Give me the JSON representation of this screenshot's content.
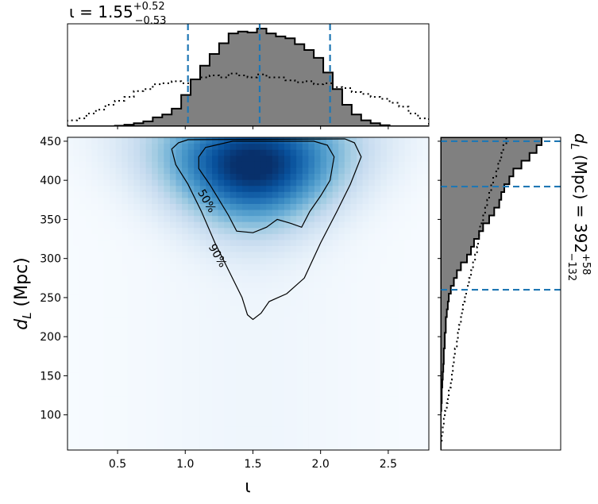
{
  "chart_data": {
    "type": "heatmap",
    "title_top": {
      "base": "ι = 1.55",
      "sup": "+0.52",
      "sub": "−0.53"
    },
    "title_right": {
      "base": "d",
      "base_sub": "L",
      "rest": " (Mpc) = 392",
      "sup": "+58",
      "sub": "−132"
    },
    "xlabel": "ι",
    "ylabel_base": "d",
    "ylabel_sub": "L",
    "ylabel_rest": " (Mpc)",
    "xlim": [
      0.13,
      2.8
    ],
    "ylim": [
      55,
      455
    ],
    "xticks": [
      0.5,
      1.0,
      1.5,
      2.0,
      2.5
    ],
    "xtick_labels": [
      "0.5",
      "1.0",
      "1.5",
      "2.0",
      "2.5"
    ],
    "yticks": [
      100,
      150,
      200,
      250,
      300,
      350,
      400,
      450
    ],
    "ytick_labels": [
      "100",
      "150",
      "200",
      "250",
      "300",
      "350",
      "400",
      "450"
    ],
    "x_quantiles": [
      1.02,
      1.55,
      2.07
    ],
    "y_quantiles": [
      260,
      392,
      450
    ],
    "contour_levels": [
      "50%",
      "90%"
    ],
    "colormap": "Blues",
    "colors": {
      "hist_fill": "#808080",
      "hist_edge": "#000000",
      "quantile_line": "#1f77b4",
      "contour": "#000000"
    },
    "density_peak": {
      "x": 1.5,
      "y": 420
    },
    "contour_90": [
      [
        1.02,
        452
      ],
      [
        0.95,
        448
      ],
      [
        0.9,
        440
      ],
      [
        0.93,
        420
      ],
      [
        1.02,
        395
      ],
      [
        1.12,
        360
      ],
      [
        1.22,
        320
      ],
      [
        1.32,
        285
      ],
      [
        1.42,
        250
      ],
      [
        1.46,
        228
      ],
      [
        1.5,
        222
      ],
      [
        1.56,
        230
      ],
      [
        1.62,
        245
      ],
      [
        1.75,
        255
      ],
      [
        1.88,
        275
      ],
      [
        2.0,
        320
      ],
      [
        2.12,
        360
      ],
      [
        2.22,
        395
      ],
      [
        2.3,
        430
      ],
      [
        2.25,
        448
      ],
      [
        2.18,
        453
      ]
    ],
    "contour_50": [
      [
        1.15,
        442
      ],
      [
        1.1,
        430
      ],
      [
        1.1,
        415
      ],
      [
        1.18,
        395
      ],
      [
        1.25,
        375
      ],
      [
        1.32,
        355
      ],
      [
        1.38,
        335
      ],
      [
        1.5,
        333
      ],
      [
        1.6,
        340
      ],
      [
        1.68,
        350
      ],
      [
        1.78,
        345
      ],
      [
        1.86,
        340
      ],
      [
        1.92,
        360
      ],
      [
        2.0,
        380
      ],
      [
        2.07,
        400
      ],
      [
        2.1,
        430
      ],
      [
        2.05,
        445
      ],
      [
        1.95,
        450
      ],
      [
        1.65,
        450
      ],
      [
        1.35,
        450
      ]
    ],
    "marginal_x": {
      "bin_edges": [
        0.13,
        0.2,
        0.27,
        0.34,
        0.41,
        0.48,
        0.55,
        0.62,
        0.69,
        0.76,
        0.83,
        0.9,
        0.97,
        1.04,
        1.11,
        1.18,
        1.25,
        1.32,
        1.39,
        1.46,
        1.53,
        1.6,
        1.67,
        1.74,
        1.81,
        1.88,
        1.95,
        2.02,
        2.09,
        2.16,
        2.23,
        2.3,
        2.37,
        2.44,
        2.51,
        2.58,
        2.65,
        2.72,
        2.8
      ],
      "posterior": [
        0,
        0,
        0,
        0,
        0,
        0.005,
        0.015,
        0.03,
        0.05,
        0.09,
        0.12,
        0.18,
        0.32,
        0.48,
        0.62,
        0.74,
        0.85,
        0.95,
        0.97,
        0.96,
        1.0,
        0.95,
        0.92,
        0.9,
        0.84,
        0.78,
        0.7,
        0.55,
        0.38,
        0.22,
        0.12,
        0.06,
        0.03,
        0.01,
        0,
        0,
        0,
        0
      ],
      "prior": [
        0.06,
        0.08,
        0.13,
        0.17,
        0.22,
        0.26,
        0.3,
        0.36,
        0.38,
        0.43,
        0.44,
        0.46,
        0.44,
        0.48,
        0.5,
        0.52,
        0.5,
        0.54,
        0.52,
        0.5,
        0.53,
        0.5,
        0.5,
        0.47,
        0.45,
        0.46,
        0.43,
        0.44,
        0.4,
        0.39,
        0.35,
        0.33,
        0.3,
        0.28,
        0.24,
        0.2,
        0.13,
        0.08
      ]
    },
    "marginal_y": {
      "bin_edges": [
        55,
        65,
        75,
        85,
        95,
        105,
        115,
        125,
        135,
        145,
        155,
        165,
        175,
        185,
        195,
        205,
        215,
        225,
        235,
        245,
        255,
        265,
        275,
        285,
        295,
        305,
        315,
        325,
        335,
        345,
        355,
        365,
        375,
        385,
        395,
        405,
        415,
        425,
        435,
        445,
        455
      ],
      "posterior": [
        0,
        0,
        0,
        0,
        0,
        0.005,
        0.01,
        0.01,
        0.015,
        0.02,
        0.025,
        0.03,
        0.03,
        0.04,
        0.04,
        0.05,
        0.05,
        0.06,
        0.07,
        0.08,
        0.1,
        0.13,
        0.16,
        0.2,
        0.26,
        0.3,
        0.33,
        0.38,
        0.42,
        0.48,
        0.53,
        0.58,
        0.6,
        0.63,
        0.68,
        0.72,
        0.8,
        0.88,
        0.95,
        1.0
      ],
      "prior": [
        0,
        0.01,
        0.02,
        0.03,
        0.04,
        0.06,
        0.07,
        0.08,
        0.1,
        0.11,
        0.12,
        0.13,
        0.14,
        0.16,
        0.17,
        0.18,
        0.2,
        0.21,
        0.22,
        0.24,
        0.26,
        0.28,
        0.3,
        0.32,
        0.34,
        0.36,
        0.37,
        0.38,
        0.39,
        0.42,
        0.44,
        0.46,
        0.48,
        0.5,
        0.52,
        0.55,
        0.57,
        0.6,
        0.62,
        0.65
      ]
    }
  }
}
